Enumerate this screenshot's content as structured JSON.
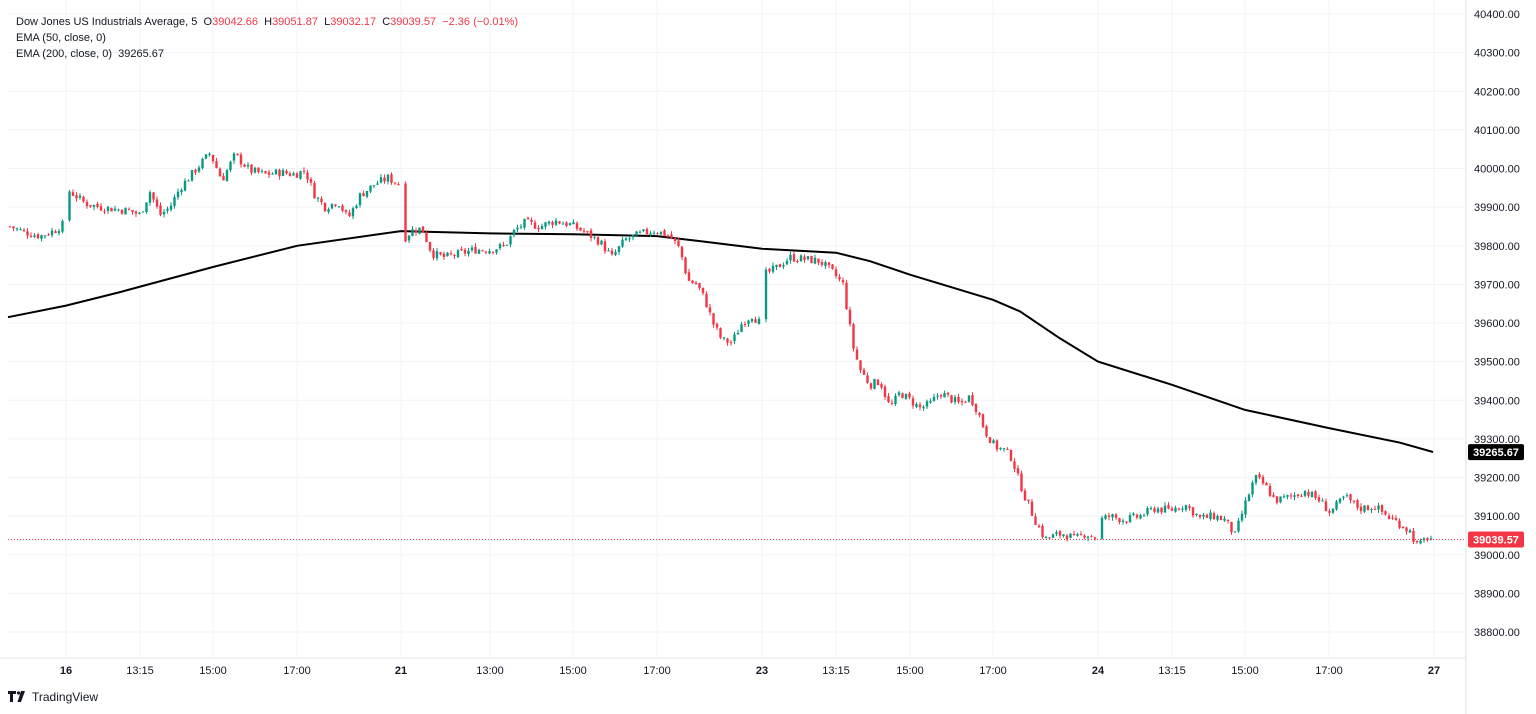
{
  "legend": {
    "symbol": "Dow Jones US Industrials Average, 5",
    "o_label": "O",
    "o_value": "39042.66",
    "h_label": "H",
    "h_value": "39051.87",
    "l_label": "L",
    "l_value": "39032.17",
    "c_label": "C",
    "c_value": "39039.57",
    "change": "−2.36 (−0.01%)",
    "ema50": "EMA (50, close, 0)",
    "ema200": "EMA (200, close, 0)",
    "ema200_value": "39265.67"
  },
  "brand": {
    "name": "TradingView"
  },
  "colors": {
    "up": "#089981",
    "down": "#f23645",
    "ema": "#000000",
    "grid": "#f0f3fa",
    "axis_text": "#131722"
  },
  "chart_data": {
    "type": "candlestick",
    "title": "Dow Jones US Industrials Average, 5",
    "ylim": [
      38700,
      40420
    ],
    "y_ticks": [
      40400,
      40300,
      40200,
      40100,
      40000,
      39900,
      39800,
      39700,
      39600,
      39500,
      39400,
      39300,
      39200,
      39100,
      39000,
      38900,
      38800
    ],
    "y_tick_labels": [
      "40400.00",
      "40300.00",
      "40200.00",
      "40100.00",
      "40000.00",
      "39900.00",
      "39800.00",
      "39700.00",
      "39600.00",
      "39500.00",
      "39400.00",
      "39300.00",
      "39200.00",
      "39100.00",
      "39000.00",
      "38900.00",
      "38800.00"
    ],
    "xlim": [
      0,
      1436
    ],
    "x_ticks": [
      {
        "label": "16",
        "pos": 66,
        "bold": true
      },
      {
        "label": "13:15",
        "pos": 140,
        "bold": false
      },
      {
        "label": "15:00",
        "pos": 213,
        "bold": false
      },
      {
        "label": "17:00",
        "pos": 297,
        "bold": false
      },
      {
        "label": "21",
        "pos": 401,
        "bold": true
      },
      {
        "label": "13:00",
        "pos": 490,
        "bold": false
      },
      {
        "label": "15:00",
        "pos": 573,
        "bold": false
      },
      {
        "label": "17:00",
        "pos": 657,
        "bold": false
      },
      {
        "label": "23",
        "pos": 762,
        "bold": true
      },
      {
        "label": "13:15",
        "pos": 836,
        "bold": false
      },
      {
        "label": "15:00",
        "pos": 910,
        "bold": false
      },
      {
        "label": "17:00",
        "pos": 993,
        "bold": false
      },
      {
        "label": "24",
        "pos": 1098,
        "bold": true
      },
      {
        "label": "13:15",
        "pos": 1172,
        "bold": false
      },
      {
        "label": "15:00",
        "pos": 1245,
        "bold": false
      },
      {
        "label": "17:00",
        "pos": 1329,
        "bold": false
      },
      {
        "label": "27",
        "pos": 1434,
        "bold": true
      }
    ],
    "price_path": [
      [
        10,
        39850
      ],
      [
        25,
        39835
      ],
      [
        40,
        39825
      ],
      [
        55,
        39840
      ],
      [
        63,
        39855
      ],
      [
        68,
        39945
      ],
      [
        85,
        39910
      ],
      [
        100,
        39900
      ],
      [
        115,
        39895
      ],
      [
        130,
        39890
      ],
      [
        140,
        39880
      ],
      [
        150,
        39940
      ],
      [
        160,
        39880
      ],
      [
        170,
        39900
      ],
      [
        180,
        39950
      ],
      [
        195,
        39995
      ],
      [
        210,
        40040
      ],
      [
        222,
        39970
      ],
      [
        235,
        40035
      ],
      [
        250,
        39995
      ],
      [
        265,
        39985
      ],
      [
        280,
        39990
      ],
      [
        295,
        39985
      ],
      [
        305,
        39995
      ],
      [
        315,
        39930
      ],
      [
        325,
        39900
      ],
      [
        338,
        39915
      ],
      [
        348,
        39870
      ],
      [
        360,
        39930
      ],
      [
        375,
        39960
      ],
      [
        388,
        39975
      ],
      [
        399,
        39960
      ],
      [
        403,
        39815
      ],
      [
        412,
        39840
      ],
      [
        422,
        39845
      ],
      [
        432,
        39780
      ],
      [
        445,
        39770
      ],
      [
        460,
        39780
      ],
      [
        475,
        39790
      ],
      [
        490,
        39790
      ],
      [
        505,
        39800
      ],
      [
        515,
        39840
      ],
      [
        525,
        39860
      ],
      [
        540,
        39850
      ],
      [
        555,
        39865
      ],
      [
        570,
        39855
      ],
      [
        585,
        39835
      ],
      [
        600,
        39810
      ],
      [
        612,
        39770
      ],
      [
        625,
        39815
      ],
      [
        640,
        39830
      ],
      [
        655,
        39840
      ],
      [
        670,
        39825
      ],
      [
        680,
        39790
      ],
      [
        688,
        39710
      ],
      [
        697,
        39700
      ],
      [
        705,
        39660
      ],
      [
        713,
        39600
      ],
      [
        722,
        39555
      ],
      [
        732,
        39550
      ],
      [
        742,
        39600
      ],
      [
        752,
        39620
      ],
      [
        760,
        39600
      ],
      [
        764,
        39725
      ],
      [
        775,
        39740
      ],
      [
        790,
        39770
      ],
      [
        805,
        39765
      ],
      [
        820,
        39760
      ],
      [
        833,
        39730
      ],
      [
        843,
        39700
      ],
      [
        848,
        39620
      ],
      [
        853,
        39540
      ],
      [
        860,
        39480
      ],
      [
        870,
        39440
      ],
      [
        880,
        39450
      ],
      [
        890,
        39380
      ],
      [
        900,
        39420
      ],
      [
        910,
        39400
      ],
      [
        920,
        39380
      ],
      [
        930,
        39390
      ],
      [
        940,
        39420
      ],
      [
        950,
        39405
      ],
      [
        960,
        39390
      ],
      [
        970,
        39410
      ],
      [
        978,
        39370
      ],
      [
        985,
        39320
      ],
      [
        995,
        39280
      ],
      [
        1005,
        39270
      ],
      [
        1012,
        39250
      ],
      [
        1018,
        39200
      ],
      [
        1025,
        39150
      ],
      [
        1035,
        39090
      ],
      [
        1045,
        39040
      ],
      [
        1055,
        39050
      ],
      [
        1065,
        39055
      ],
      [
        1075,
        39040
      ],
      [
        1085,
        39055
      ],
      [
        1095,
        39045
      ],
      [
        1100,
        39090
      ],
      [
        1110,
        39100
      ],
      [
        1125,
        39090
      ],
      [
        1140,
        39100
      ],
      [
        1155,
        39120
      ],
      [
        1170,
        39115
      ],
      [
        1185,
        39130
      ],
      [
        1200,
        39095
      ],
      [
        1215,
        39100
      ],
      [
        1225,
        39090
      ],
      [
        1235,
        39050
      ],
      [
        1245,
        39130
      ],
      [
        1255,
        39200
      ],
      [
        1265,
        39180
      ],
      [
        1275,
        39140
      ],
      [
        1290,
        39150
      ],
      [
        1305,
        39165
      ],
      [
        1320,
        39140
      ],
      [
        1330,
        39110
      ],
      [
        1345,
        39150
      ],
      [
        1360,
        39120
      ],
      [
        1375,
        39125
      ],
      [
        1390,
        39095
      ],
      [
        1400,
        39080
      ],
      [
        1410,
        39060
      ],
      [
        1418,
        39020
      ],
      [
        1427,
        39045
      ],
      [
        1433,
        39040
      ]
    ],
    "gaps": [
      [
        63,
        68
      ],
      [
        399,
        403
      ],
      [
        760,
        764
      ],
      [
        1095,
        1100
      ]
    ],
    "ema200_path": [
      [
        8,
        39615
      ],
      [
        66,
        39645
      ],
      [
        120,
        39680
      ],
      [
        213,
        39745
      ],
      [
        297,
        39800
      ],
      [
        401,
        39838
      ],
      [
        490,
        39832
      ],
      [
        573,
        39830
      ],
      [
        657,
        39825
      ],
      [
        700,
        39812
      ],
      [
        762,
        39792
      ],
      [
        836,
        39782
      ],
      [
        870,
        39760
      ],
      [
        910,
        39725
      ],
      [
        993,
        39660
      ],
      [
        1020,
        39630
      ],
      [
        1060,
        39560
      ],
      [
        1098,
        39500
      ],
      [
        1172,
        39440
      ],
      [
        1245,
        39375
      ],
      [
        1329,
        39328
      ],
      [
        1400,
        39290
      ],
      [
        1433,
        39266
      ]
    ],
    "last_price": 39039.57,
    "last_price_label": "39039.57",
    "ema200_last": 39265.67,
    "ema200_last_label": "39265.67"
  }
}
